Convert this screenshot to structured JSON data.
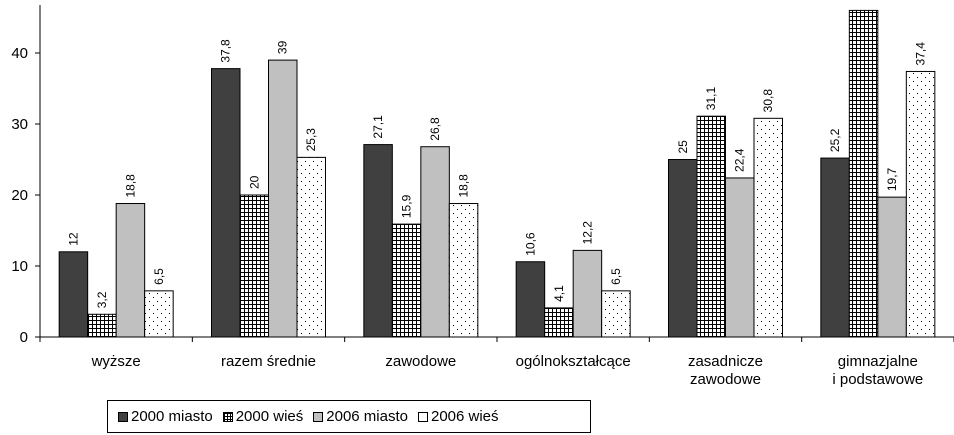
{
  "chart_data": {
    "type": "bar",
    "categories": [
      [
        "wyższe"
      ],
      [
        "razem średnie"
      ],
      [
        "zawodowe"
      ],
      [
        "ogólnokształcące"
      ],
      [
        "zasadnicze",
        "zawodowe"
      ],
      [
        "gimnazjalne",
        "i podstawowe"
      ]
    ],
    "series": [
      {
        "name": "2000 miasto",
        "values": [
          12,
          37.8,
          27.1,
          10.6,
          25,
          25.2
        ],
        "labels": [
          "12",
          "37,8",
          "27,1",
          "10,6",
          "25",
          "25,2"
        ],
        "pattern": "solid-dark",
        "color": "#404040"
      },
      {
        "name": "2000 wieś",
        "values": [
          3.2,
          20,
          15.9,
          4.1,
          31.1,
          46
        ],
        "labels": [
          "3,2",
          "20",
          "15,9",
          "4,1",
          "31,1",
          ""
        ],
        "pattern": "grid",
        "color": "#ffffff"
      },
      {
        "name": "2006 miasto",
        "values": [
          18.8,
          39,
          26.8,
          12.2,
          22.4,
          19.7
        ],
        "labels": [
          "18,8",
          "39",
          "26,8",
          "12,2",
          "22,4",
          "19,7"
        ],
        "pattern": "solid-light",
        "color": "#c0c0c0"
      },
      {
        "name": "2006 wieś",
        "values": [
          6.5,
          25.3,
          18.8,
          6.5,
          30.8,
          37.4
        ],
        "labels": [
          "6,5",
          "25,3",
          "18,8",
          "6,5",
          "30,8",
          "37,4"
        ],
        "pattern": "dots",
        "color": "#ffffff"
      }
    ],
    "yticks": [
      "0",
      "10",
      "20",
      "30",
      "40"
    ],
    "ylim": [
      0,
      46
    ],
    "grid": false,
    "legend_position": "bottom-left"
  }
}
